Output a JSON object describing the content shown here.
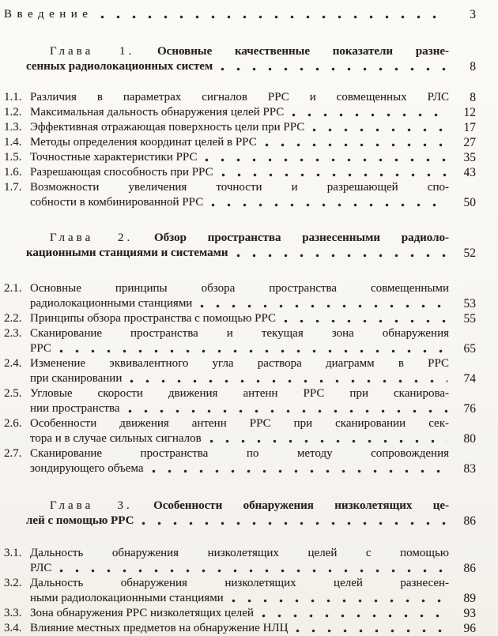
{
  "colors": {
    "paper": "#f8f6f2",
    "ink": "#262220",
    "leader_dots": "#2c2824"
  },
  "toc": {
    "intro": {
      "label": "Введение",
      "page": "3"
    },
    "chapters": [
      {
        "heading": {
          "word": "Глава 1.",
          "lines": [
            "Основные качественные показатели разне-",
            "сенных радиолокационных систем"
          ],
          "page": "8"
        },
        "entries": [
          {
            "num": "1.1.",
            "lines": [
              "Различия в параметрах сигналов РРС и совмещенных РЛС"
            ],
            "page": "8"
          },
          {
            "num": "1.2.",
            "lines": [
              "Максимальная дальность обнаружения целей РРС"
            ],
            "page": "12"
          },
          {
            "num": "1.3.",
            "lines": [
              "Эффективная отражающая поверхность цели при РРС"
            ],
            "page": "17"
          },
          {
            "num": "1.4.",
            "lines": [
              "Методы определения координат целей в РРС"
            ],
            "page": "27"
          },
          {
            "num": "1.5.",
            "lines": [
              "Точностные характеристики РРС"
            ],
            "page": "35"
          },
          {
            "num": "1.6.",
            "lines": [
              "Разрешающая способность при РРС"
            ],
            "page": "43"
          },
          {
            "num": "1.7.",
            "lines": [
              "Возможности увеличения точности и разрешающей спо-",
              "собности в комбинированной РРС"
            ],
            "page": "50"
          }
        ]
      },
      {
        "heading": {
          "word": "Глава 2.",
          "lines": [
            "Обзор пространства разнесенными радиоло-",
            "кационными станциями и системами"
          ],
          "page": "52"
        },
        "entries": [
          {
            "num": "2.1.",
            "lines": [
              "Основные принципы обзора пространства совмещенными",
              "радиолокационными станциями"
            ],
            "page": "53"
          },
          {
            "num": "2.2.",
            "lines": [
              "Принципы обзора пространства с помощью РРС"
            ],
            "page": "55"
          },
          {
            "num": "2.3.",
            "lines": [
              "Сканирование пространства и текущая зона обнаружения",
              "РРС"
            ],
            "page": "65"
          },
          {
            "num": "2.4.",
            "lines": [
              "Изменение эквивалентного угла раствора диаграмм в РРС",
              "при сканировании"
            ],
            "page": "74"
          },
          {
            "num": "2.5.",
            "lines": [
              "Угловые скорости движения антенн РРС при сканирова-",
              "нии пространства"
            ],
            "page": "76"
          },
          {
            "num": "2.6.",
            "lines": [
              "Особенности движения антенн РРС при сканировании сек-",
              "тора и в случае сильных сигналов"
            ],
            "page": "80"
          },
          {
            "num": "2.7.",
            "lines": [
              "Сканирование пространства по методу сопровождения",
              "зондирующего объема"
            ],
            "page": "83"
          }
        ]
      },
      {
        "heading": {
          "word": "Глава 3.",
          "lines": [
            "Особенности обнаружения низколетящих це-",
            "лей с помощью РРС"
          ],
          "page": "86"
        },
        "entries": [
          {
            "num": "3.1.",
            "lines": [
              "Дальность обнаружения низколетящих целей с помощью",
              "РЛС"
            ],
            "page": "86"
          },
          {
            "num": "3.2.",
            "lines": [
              "Дальность обнаружения низколетящих целей разнесен-",
              "ными радиолокационными станциями"
            ],
            "page": "89"
          },
          {
            "num": "3.3.",
            "lines": [
              "Зона обнаружения РРС низколетящих целей"
            ],
            "page": "93"
          },
          {
            "num": "3.4.",
            "lines": [
              "Влияние местных предметов на обнаружение НЛЦ"
            ],
            "page": "96"
          }
        ]
      }
    ]
  }
}
